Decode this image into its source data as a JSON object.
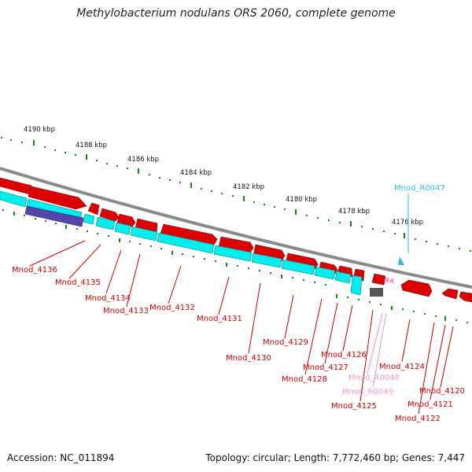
{
  "title": "Methylobacterium nodulans ORS 2060, complete genome",
  "footer": {
    "accession": "Accession: NC_011894",
    "topology": "Topology: circular; Length: 7,772,460 bp; Genes: 7,447"
  },
  "scale_ticks": [
    "4190 kbp",
    "4188 kbp",
    "4186 kbp",
    "4184 kbp",
    "4182 kbp",
    "4180 kbp",
    "4178 kbp",
    "4176 kbp"
  ],
  "gene_labels": [
    {
      "text": "Mnod_R0047",
      "color": "#33bbdd"
    },
    {
      "text": "Mnod_4136",
      "color": "#cc0000"
    },
    {
      "text": "Mnod_4135",
      "color": "#cc0000"
    },
    {
      "text": "Mnod_4134",
      "color": "#cc0000"
    },
    {
      "text": "Mnod_4133",
      "color": "#cc0000"
    },
    {
      "text": "Mnod_4132",
      "color": "#cc0000"
    },
    {
      "text": "Mnod_4131",
      "color": "#cc0000"
    },
    {
      "text": "Mnod_4130",
      "color": "#cc0000"
    },
    {
      "text": "Mnod_4129",
      "color": "#cc0000"
    },
    {
      "text": "Mnod_4126",
      "color": "#cc0000"
    },
    {
      "text": "Mnod_4127",
      "color": "#cc0000"
    },
    {
      "text": "Mnod_4128",
      "color": "#cc0000"
    },
    {
      "text": "Mnod_R0048",
      "color": "#ee99cc"
    },
    {
      "text": "Mnod_R0049",
      "color": "#ee99cc"
    },
    {
      "text": "Mnod_4125",
      "color": "#cc0000"
    },
    {
      "text": "Mnod_4124",
      "color": "#cc0000"
    },
    {
      "text": "Mnod_4120",
      "color": "#cc0000"
    },
    {
      "text": "Mnod_4121",
      "color": "#cc0000"
    },
    {
      "text": "Mnod_4122",
      "color": "#cc0000"
    }
  ],
  "colors": {
    "backbone": "#8a8a8a",
    "cds": "#dd0000",
    "cds_outline": "#880000",
    "orf": "#00eeee",
    "misc": "#5544aa",
    "gap": "#555555",
    "tick": "#118811",
    "trna": "#33bbdd",
    "rrna": "#ee99cc"
  }
}
